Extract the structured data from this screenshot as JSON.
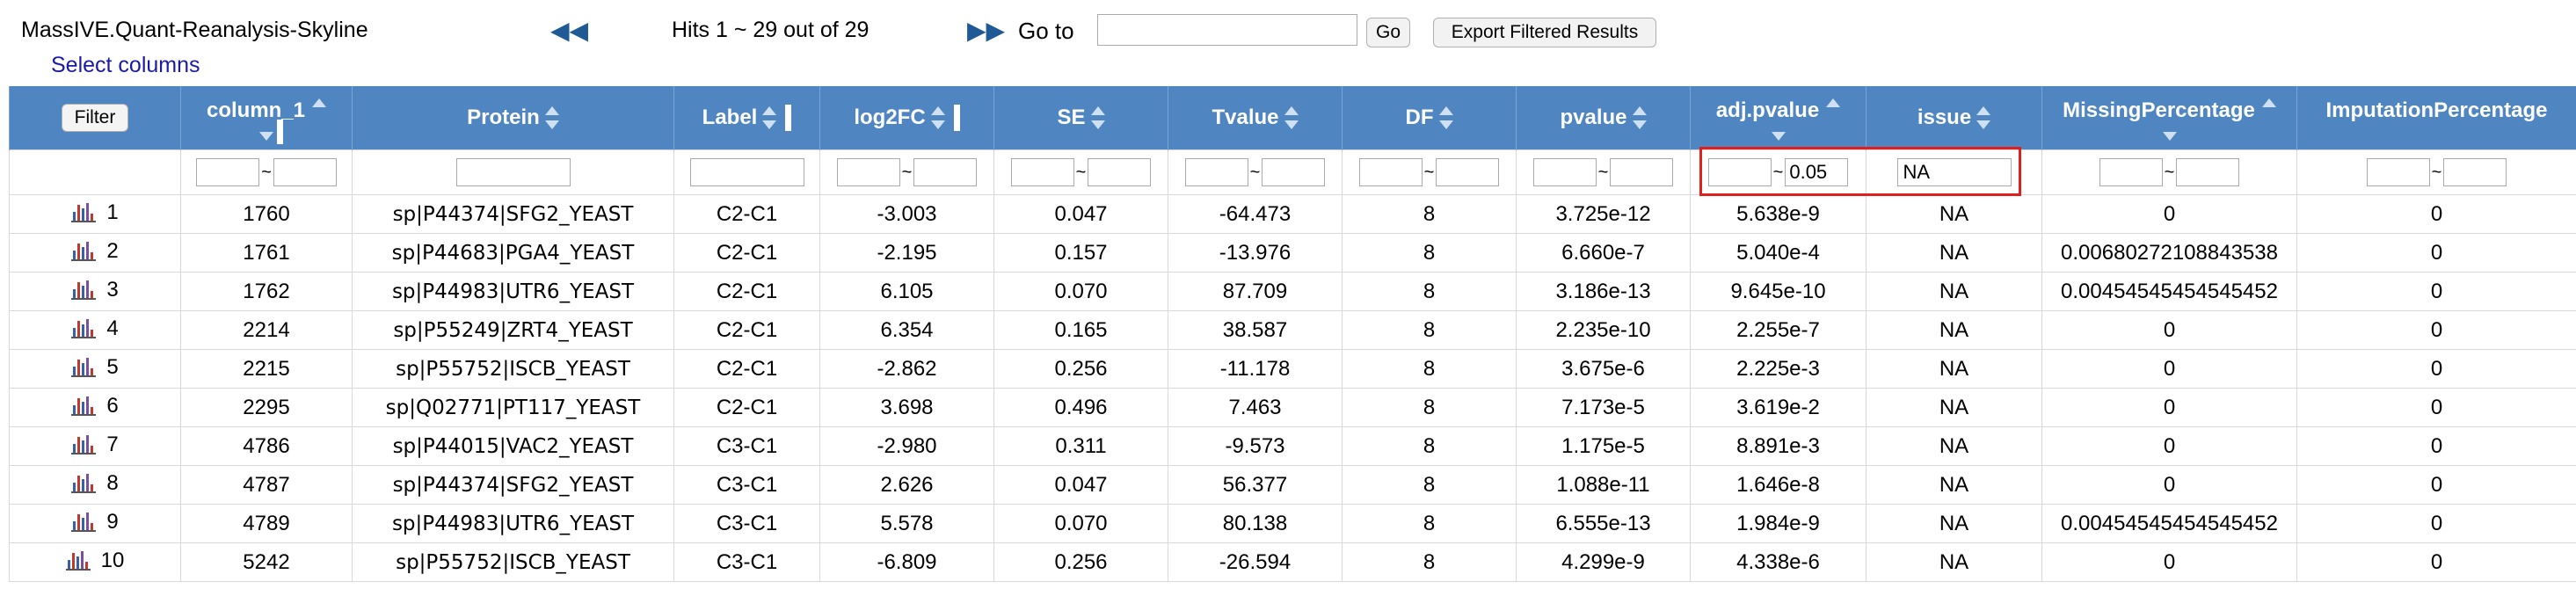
{
  "app": {
    "title": "MassIVE.Quant-Reanalysis-Skyline",
    "select_columns": "Select columns",
    "hits": "Hits 1 ~ 29 out of 29",
    "goto_label": "Go to",
    "go_button": "Go",
    "export_button": "Export Filtered Results"
  },
  "header": {
    "filter_button": "Filter",
    "columns": [
      "column_1",
      "Protein",
      "Label",
      "log2FC",
      "SE",
      "Tvalue",
      "DF",
      "pvalue",
      "adj.pvalue",
      "issue",
      "MissingPercentage",
      "ImputationPercentage"
    ]
  },
  "filters": {
    "adj_pvalue_max": "0.05",
    "issue": "NA",
    "tilde": "~"
  },
  "rows": [
    {
      "n": "1",
      "c1": "1760",
      "protein": "sp|P44374|SFG2_YEAST",
      "label": "C2-C1",
      "log2fc": "-3.003",
      "se": "0.047",
      "t": "-64.473",
      "df": "8",
      "p": "3.725e-12",
      "adjp": "5.638e-9",
      "issue": "NA",
      "miss": "0",
      "imp": "0"
    },
    {
      "n": "2",
      "c1": "1761",
      "protein": "sp|P44683|PGA4_YEAST",
      "label": "C2-C1",
      "log2fc": "-2.195",
      "se": "0.157",
      "t": "-13.976",
      "df": "8",
      "p": "6.660e-7",
      "adjp": "5.040e-4",
      "issue": "NA",
      "miss": "0.00680272108843538",
      "imp": "0"
    },
    {
      "n": "3",
      "c1": "1762",
      "protein": "sp|P44983|UTR6_YEAST",
      "label": "C2-C1",
      "log2fc": "6.105",
      "se": "0.070",
      "t": "87.709",
      "df": "8",
      "p": "3.186e-13",
      "adjp": "9.645e-10",
      "issue": "NA",
      "miss": "0.00454545454545452",
      "imp": "0"
    },
    {
      "n": "4",
      "c1": "2214",
      "protein": "sp|P55249|ZRT4_YEAST",
      "label": "C2-C1",
      "log2fc": "6.354",
      "se": "0.165",
      "t": "38.587",
      "df": "8",
      "p": "2.235e-10",
      "adjp": "2.255e-7",
      "issue": "NA",
      "miss": "0",
      "imp": "0"
    },
    {
      "n": "5",
      "c1": "2215",
      "protein": "sp|P55752|ISCB_YEAST",
      "label": "C2-C1",
      "log2fc": "-2.862",
      "se": "0.256",
      "t": "-11.178",
      "df": "8",
      "p": "3.675e-6",
      "adjp": "2.225e-3",
      "issue": "NA",
      "miss": "0",
      "imp": "0"
    },
    {
      "n": "6",
      "c1": "2295",
      "protein": "sp|Q02771|PT117_YEAST",
      "label": "C2-C1",
      "log2fc": "3.698",
      "se": "0.496",
      "t": "7.463",
      "df": "8",
      "p": "7.173e-5",
      "adjp": "3.619e-2",
      "issue": "NA",
      "miss": "0",
      "imp": "0"
    },
    {
      "n": "7",
      "c1": "4786",
      "protein": "sp|P44015|VAC2_YEAST",
      "label": "C3-C1",
      "log2fc": "-2.980",
      "se": "0.311",
      "t": "-9.573",
      "df": "8",
      "p": "1.175e-5",
      "adjp": "8.891e-3",
      "issue": "NA",
      "miss": "0",
      "imp": "0"
    },
    {
      "n": "8",
      "c1": "4787",
      "protein": "sp|P44374|SFG2_YEAST",
      "label": "C3-C1",
      "log2fc": "2.626",
      "se": "0.047",
      "t": "56.377",
      "df": "8",
      "p": "1.088e-11",
      "adjp": "1.646e-8",
      "issue": "NA",
      "miss": "0",
      "imp": "0"
    },
    {
      "n": "9",
      "c1": "4789",
      "protein": "sp|P44983|UTR6_YEAST",
      "label": "C3-C1",
      "log2fc": "5.578",
      "se": "0.070",
      "t": "80.138",
      "df": "8",
      "p": "6.555e-13",
      "adjp": "1.984e-9",
      "issue": "NA",
      "miss": "0.00454545454545452",
      "imp": "0"
    },
    {
      "n": "10",
      "c1": "5242",
      "protein": "sp|P55752|ISCB_YEAST",
      "label": "C3-C1",
      "log2fc": "-6.809",
      "se": "0.256",
      "t": "-26.594",
      "df": "8",
      "p": "4.299e-9",
      "adjp": "4.338e-6",
      "issue": "NA",
      "miss": "0",
      "imp": "0"
    }
  ]
}
